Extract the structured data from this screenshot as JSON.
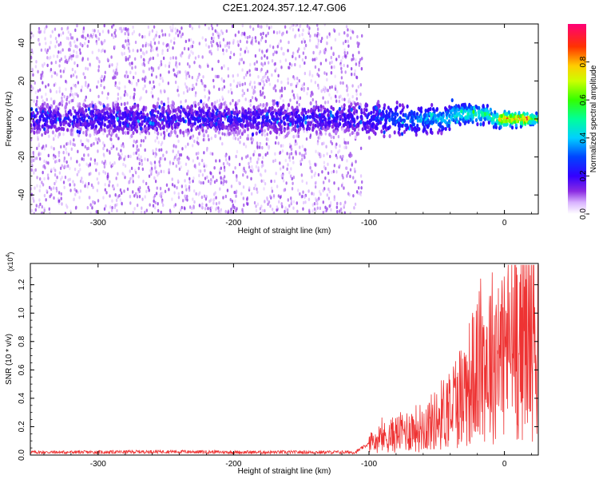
{
  "figure_title": "C2E1.2024.357.12.47.G06",
  "colors": {
    "snr_line": "#ee3333",
    "colormap": [
      "#ffffff",
      "#d9b3ff",
      "#8a2be2",
      "#4b00ff",
      "#1f3cff",
      "#00c8ff",
      "#00ff9a",
      "#66ff00",
      "#ffff00",
      "#ff9900",
      "#ff0000",
      "#ff0066"
    ]
  },
  "chart_data": [
    {
      "type": "heatmap",
      "title": "",
      "xlabel": "Height of straight line (km)",
      "ylabel": "Frequency (Hz)",
      "xlim": [
        -350,
        25
      ],
      "ylim": [
        -50,
        50
      ],
      "x_ticks": [
        "-300",
        "-200",
        "-100",
        "0"
      ],
      "y_ticks": [
        "-40",
        "-20",
        "0",
        "20",
        "40"
      ],
      "colorbar": {
        "label": "Normalized spectral amplitude",
        "range": [
          0,
          1
        ],
        "ticks": [
          "0.0",
          "0.2",
          "0.4",
          "0.6",
          "0.8"
        ]
      },
      "description_values": {
        "noise_spread_extent_km": [
          -350,
          -105
        ],
        "core_band_halfwidth_hz": 8,
        "narrowing_region_km": [
          -105,
          25
        ],
        "peak_amplitude_near_km": [
          0,
          15
        ]
      }
    },
    {
      "type": "line",
      "title": "",
      "xlabel": "Height of straight line (km)",
      "ylabel": "SNR (10 * v/v)",
      "y_multiplier": "(x10",
      "y_multiplier_exp": "4",
      "y_multiplier_close": ")",
      "xlim": [
        -350,
        25
      ],
      "ylim": [
        0,
        1.35
      ],
      "x_ticks": [
        "-300",
        "-200",
        "-100",
        "0"
      ],
      "y_ticks": [
        "0.0",
        "0.2",
        "0.4",
        "0.6",
        "0.8",
        "1.0",
        "1.2"
      ],
      "series": [
        {
          "x": [
            -350,
            -300,
            -250,
            -200,
            -150,
            -110,
            -100,
            -90,
            -80,
            -70,
            -60,
            -50,
            -40,
            -30,
            -20,
            -10,
            0,
            10,
            20,
            25
          ],
          "y": [
            0.02,
            0.02,
            0.025,
            0.02,
            0.02,
            0.02,
            0.08,
            0.12,
            0.15,
            0.18,
            0.2,
            0.25,
            0.35,
            0.45,
            0.6,
            0.7,
            0.75,
            0.85,
            0.9,
            0.9
          ]
        }
      ]
    }
  ]
}
